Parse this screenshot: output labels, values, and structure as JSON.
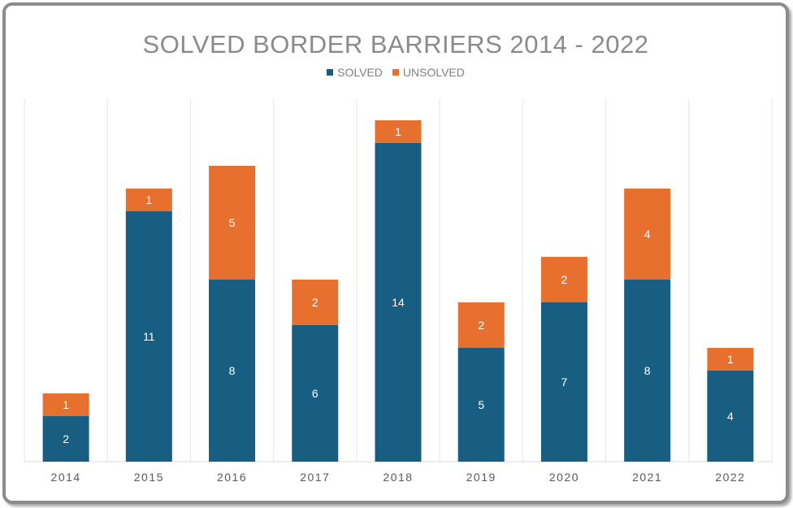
{
  "chart_data": {
    "type": "bar",
    "stacked": true,
    "title": "SOLVED BORDER BARRIERS 2014 - 2022",
    "categories": [
      "2014",
      "2015",
      "2016",
      "2017",
      "2018",
      "2019",
      "2020",
      "2021",
      "2022"
    ],
    "series": [
      {
        "name": "SOLVED",
        "color": "#175e82",
        "values": [
          2,
          11,
          8,
          6,
          14,
          5,
          7,
          8,
          4
        ]
      },
      {
        "name": "UNSOLVED",
        "color": "#e8702f",
        "values": [
          1,
          1,
          5,
          2,
          1,
          2,
          2,
          4,
          1
        ]
      }
    ],
    "ylim": [
      0,
      16
    ],
    "legend_position": "top",
    "grid": "vertical category separators"
  }
}
